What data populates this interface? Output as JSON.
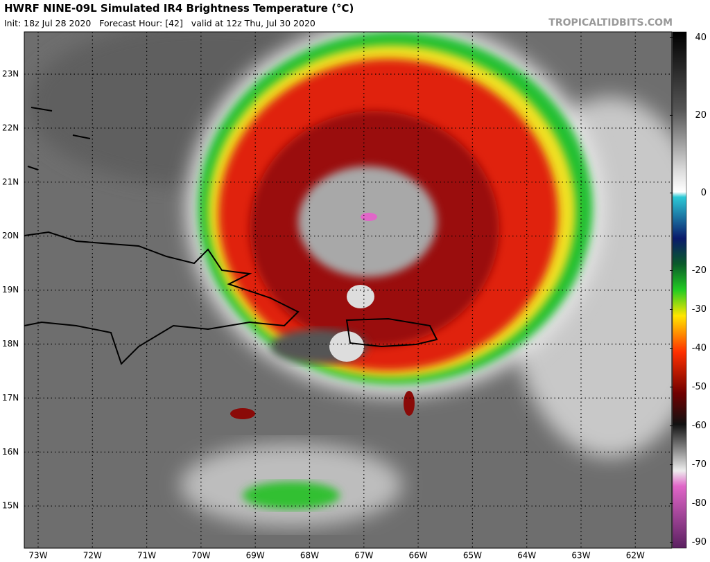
{
  "header": {
    "title": "HWRF NINE-09L Simulated IR4 Brightness Temperature (°C)",
    "subtitle": "Init: 18z Jul 28 2020   Forecast Hour: [42]   valid at 12z Thu, Jul 30 2020",
    "watermark": "TROPICALTIDBITS.COM"
  },
  "map": {
    "latitudes": [
      "23N",
      "22N",
      "21N",
      "20N",
      "19N",
      "18N",
      "17N",
      "16N",
      "15N"
    ],
    "longitudes": [
      "73W",
      "72W",
      "71W",
      "70W",
      "69W",
      "68W",
      "67W",
      "66W",
      "65W",
      "64W",
      "63W",
      "62W"
    ]
  },
  "colorbar": {
    "lim": [
      -91.5,
      41.5
    ],
    "ticks": [
      40,
      20,
      0,
      -20,
      -30,
      -40,
      -50,
      -60,
      -70,
      -80,
      -90
    ]
  }
}
